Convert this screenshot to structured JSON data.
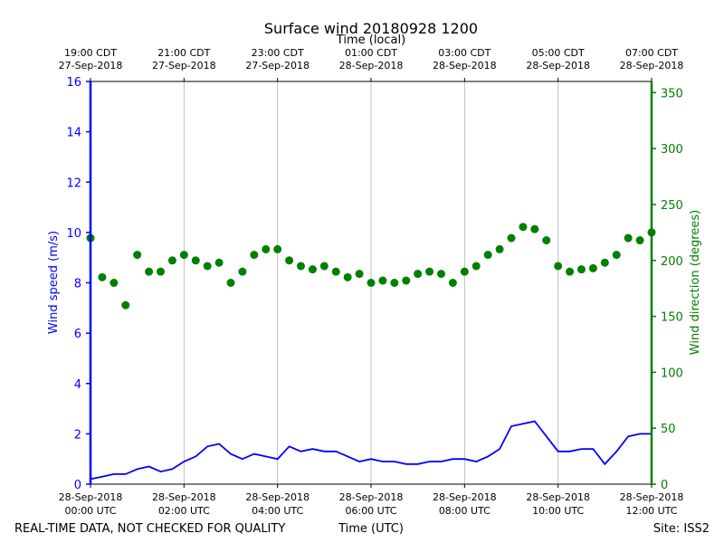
{
  "chart_data": {
    "type": "line",
    "title": "Surface wind 20180928 1200",
    "top_xlabel": "Time (local)",
    "xlabel": "Time (UTC)",
    "ylabel_left": "Wind speed (m/s)",
    "ylabel_right": "Wind direction (degrees)",
    "x_range_hours_utc": [
      0,
      12
    ],
    "ylim_left": [
      0,
      16
    ],
    "ylim_right": [
      0,
      360
    ],
    "yticks_left": [
      "0",
      "2",
      "4",
      "6",
      "8",
      "10",
      "12",
      "14",
      "16"
    ],
    "yticks_right": [
      "0",
      "50",
      "100",
      "150",
      "200",
      "250",
      "300",
      "350"
    ],
    "xticks_bottom": [
      {
        "line1": "28-Sep-2018",
        "line2": "00:00 UTC"
      },
      {
        "line1": "28-Sep-2018",
        "line2": "02:00 UTC"
      },
      {
        "line1": "28-Sep-2018",
        "line2": "04:00 UTC"
      },
      {
        "line1": "28-Sep-2018",
        "line2": "06:00 UTC"
      },
      {
        "line1": "28-Sep-2018",
        "line2": "08:00 UTC"
      },
      {
        "line1": "28-Sep-2018",
        "line2": "10:00 UTC"
      },
      {
        "line1": "28-Sep-2018",
        "line2": "12:00 UTC"
      }
    ],
    "xticks_top": [
      {
        "line1": "19:00 CDT",
        "line2": "27-Sep-2018"
      },
      {
        "line1": "21:00 CDT",
        "line2": "27-Sep-2018"
      },
      {
        "line1": "23:00 CDT",
        "line2": "27-Sep-2018"
      },
      {
        "line1": "01:00 CDT",
        "line2": "28-Sep-2018"
      },
      {
        "line1": "03:00 CDT",
        "line2": "28-Sep-2018"
      },
      {
        "line1": "05:00 CDT",
        "line2": "28-Sep-2018"
      },
      {
        "line1": "07:00 CDT",
        "line2": "28-Sep-2018"
      }
    ],
    "grid": "vertical",
    "series": [
      {
        "color": "#0000ff",
        "axis": "left",
        "style": "line",
        "x_hours_utc": [
          0,
          0.25,
          0.5,
          0.75,
          1.0,
          1.25,
          1.5,
          1.75,
          2.0,
          2.25,
          2.5,
          2.75,
          3.0,
          3.25,
          3.5,
          3.75,
          4.0,
          4.25,
          4.5,
          4.75,
          5.0,
          5.25,
          5.5,
          5.75,
          6.0,
          6.25,
          6.5,
          6.75,
          7.0,
          7.25,
          7.5,
          7.75,
          8.0,
          8.25,
          8.5,
          8.75,
          9.0,
          9.25,
          9.5,
          9.75,
          10.0,
          10.25,
          10.5,
          10.75,
          11.0,
          11.25,
          11.5,
          11.75,
          12.0
        ],
        "values": [
          0.2,
          0.3,
          0.4,
          0.4,
          0.6,
          0.7,
          0.5,
          0.6,
          0.9,
          1.1,
          1.5,
          1.6,
          1.2,
          1.0,
          1.2,
          1.1,
          1.0,
          1.5,
          1.3,
          1.4,
          1.3,
          1.3,
          1.1,
          0.9,
          1.0,
          0.9,
          0.9,
          0.8,
          0.8,
          0.9,
          0.9,
          1.0,
          1.0,
          0.9,
          1.1,
          1.4,
          2.3,
          2.4,
          2.5,
          1.9,
          1.3,
          1.3,
          1.4,
          1.4,
          0.8,
          1.3,
          1.9,
          2.0,
          2.0
        ]
      },
      {
        "color": "#008000",
        "axis": "right",
        "style": "markers",
        "x_hours_utc": [
          0,
          0.25,
          0.5,
          0.75,
          1.0,
          1.25,
          1.5,
          1.75,
          2.0,
          2.25,
          2.5,
          2.75,
          3.0,
          3.25,
          3.5,
          3.75,
          4.0,
          4.25,
          4.5,
          4.75,
          5.0,
          5.25,
          5.5,
          5.75,
          6.0,
          6.25,
          6.5,
          6.75,
          7.0,
          7.25,
          7.5,
          7.75,
          8.0,
          8.25,
          8.5,
          8.75,
          9.0,
          9.25,
          9.5,
          9.75,
          10.0,
          10.25,
          10.5,
          10.75,
          11.0,
          11.25,
          11.5,
          11.75,
          12.0
        ],
        "values": [
          220,
          185,
          180,
          160,
          205,
          190,
          190,
          200,
          205,
          200,
          195,
          198,
          180,
          190,
          205,
          210,
          210,
          200,
          195,
          192,
          195,
          190,
          185,
          188,
          180,
          182,
          180,
          182,
          188,
          190,
          188,
          180,
          190,
          195,
          205,
          210,
          220,
          230,
          228,
          218,
          195,
          190,
          192,
          193,
          198,
          205,
          220,
          218,
          225
        ]
      }
    ]
  },
  "footer": {
    "left_note": "REAL-TIME DATA, NOT CHECKED FOR QUALITY",
    "center_label": "Time (UTC)",
    "site": "Site: ISS2"
  }
}
